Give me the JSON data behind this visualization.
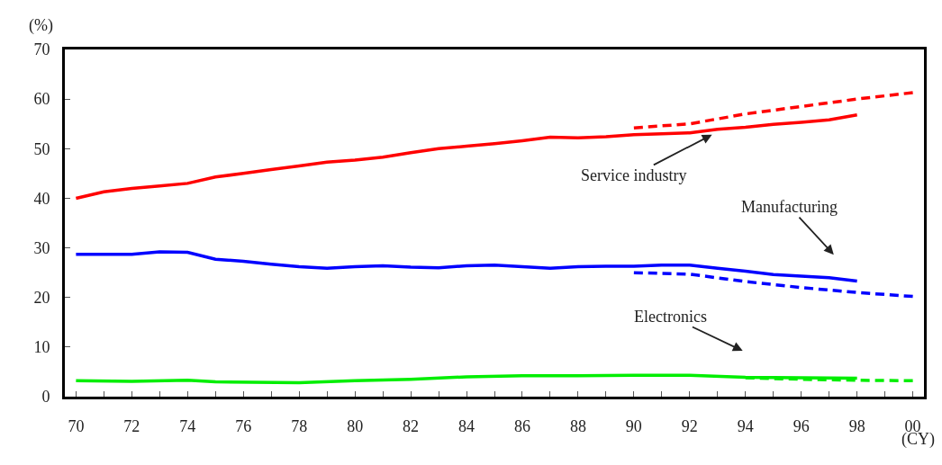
{
  "chart_data": {
    "type": "line",
    "xlabel": "(CY)",
    "ylabel": "(%)",
    "xlim": [
      1969.6,
      2000.4
    ],
    "ylim": [
      0,
      70
    ],
    "xticks": [
      {
        "value": 1970,
        "label": "70"
      },
      {
        "value": 1971,
        "label": null
      },
      {
        "value": 1972,
        "label": "72"
      },
      {
        "value": 1973,
        "label": null
      },
      {
        "value": 1974,
        "label": "74"
      },
      {
        "value": 1975,
        "label": null
      },
      {
        "value": 1976,
        "label": "76"
      },
      {
        "value": 1977,
        "label": null
      },
      {
        "value": 1978,
        "label": "78"
      },
      {
        "value": 1979,
        "label": null
      },
      {
        "value": 1980,
        "label": "80"
      },
      {
        "value": 1981,
        "label": null
      },
      {
        "value": 1982,
        "label": "82"
      },
      {
        "value": 1983,
        "label": null
      },
      {
        "value": 1984,
        "label": "84"
      },
      {
        "value": 1985,
        "label": null
      },
      {
        "value": 1986,
        "label": "86"
      },
      {
        "value": 1987,
        "label": null
      },
      {
        "value": 1988,
        "label": "88"
      },
      {
        "value": 1989,
        "label": null
      },
      {
        "value": 1990,
        "label": "90"
      },
      {
        "value": 1991,
        "label": null
      },
      {
        "value": 1992,
        "label": "92"
      },
      {
        "value": 1993,
        "label": null
      },
      {
        "value": 1994,
        "label": "94"
      },
      {
        "value": 1995,
        "label": null
      },
      {
        "value": 1996,
        "label": "96"
      },
      {
        "value": 1997,
        "label": null
      },
      {
        "value": 1998,
        "label": "98"
      },
      {
        "value": 1999,
        "label": null
      },
      {
        "value": 2000,
        "label": "00"
      }
    ],
    "yticks": [
      0,
      10,
      20,
      30,
      40,
      50,
      60,
      70
    ],
    "grid": false,
    "marker": "none",
    "series": [
      {
        "color": "#ff0000",
        "line_style": "solid",
        "x": [
          1970,
          1971,
          1972,
          1973,
          1974,
          1975,
          1976,
          1977,
          1978,
          1979,
          1980,
          1981,
          1982,
          1983,
          1984,
          1985,
          1986,
          1987,
          1988,
          1989,
          1990,
          1991,
          1992,
          1993,
          1994,
          1995,
          1996,
          1997,
          1998
        ],
        "values": [
          40,
          41.3,
          42,
          42.5,
          43,
          44.3,
          45,
          45.8,
          46.5,
          47.3,
          47.7,
          48.3,
          49.2,
          50,
          50.5,
          51,
          51.6,
          52.3,
          52.2,
          52.4,
          52.8,
          53,
          53.2,
          53.9,
          54.3,
          54.9,
          55.3,
          55.8,
          56.8
        ]
      },
      {
        "color": "#ff0000",
        "line_style": "dashed",
        "x": [
          1990,
          1992,
          1994,
          1996,
          1998,
          2000
        ],
        "values": [
          54.2,
          55,
          57,
          58.5,
          60,
          61.3
        ]
      },
      {
        "color": "#0000ff",
        "line_style": "solid",
        "x": [
          1970,
          1971,
          1972,
          1973,
          1974,
          1975,
          1976,
          1977,
          1978,
          1979,
          1980,
          1981,
          1982,
          1983,
          1984,
          1985,
          1986,
          1987,
          1988,
          1989,
          1990,
          1991,
          1992,
          1993,
          1994,
          1995,
          1996,
          1997,
          1998
        ],
        "values": [
          28.7,
          28.7,
          28.7,
          29.2,
          29.1,
          27.7,
          27.3,
          26.7,
          26.2,
          25.9,
          26.2,
          26.4,
          26.1,
          26,
          26.4,
          26.5,
          26.2,
          25.9,
          26.2,
          26.3,
          26.3,
          26.5,
          26.5,
          25.9,
          25.3,
          24.6,
          24.3,
          24,
          23.3
        ]
      },
      {
        "color": "#0000ff",
        "line_style": "dashed",
        "x": [
          1990,
          1992,
          1994,
          1996,
          1998,
          2000
        ],
        "values": [
          25,
          24.7,
          23.2,
          22,
          21,
          20.2
        ]
      },
      {
        "color": "#00ee00",
        "line_style": "solid",
        "x": [
          1970,
          1972,
          1974,
          1975,
          1978,
          1980,
          1982,
          1984,
          1986,
          1988,
          1990,
          1992,
          1994,
          1996,
          1998
        ],
        "values": [
          3.2,
          3.1,
          3.3,
          3,
          2.8,
          3.2,
          3.5,
          4,
          4.2,
          4.2,
          4.3,
          4.3,
          3.9,
          3.8,
          3.7
        ]
      },
      {
        "color": "#00ee00",
        "line_style": "dashed",
        "x": [
          1994,
          1996,
          1998,
          2000
        ],
        "values": [
          3.8,
          3.5,
          3.3,
          3.2
        ]
      }
    ],
    "annotations": [
      {
        "text": "Service industry",
        "x": 1992.8,
        "y": 52.8
      },
      "Manufacturing",
      "Electronics"
    ]
  }
}
